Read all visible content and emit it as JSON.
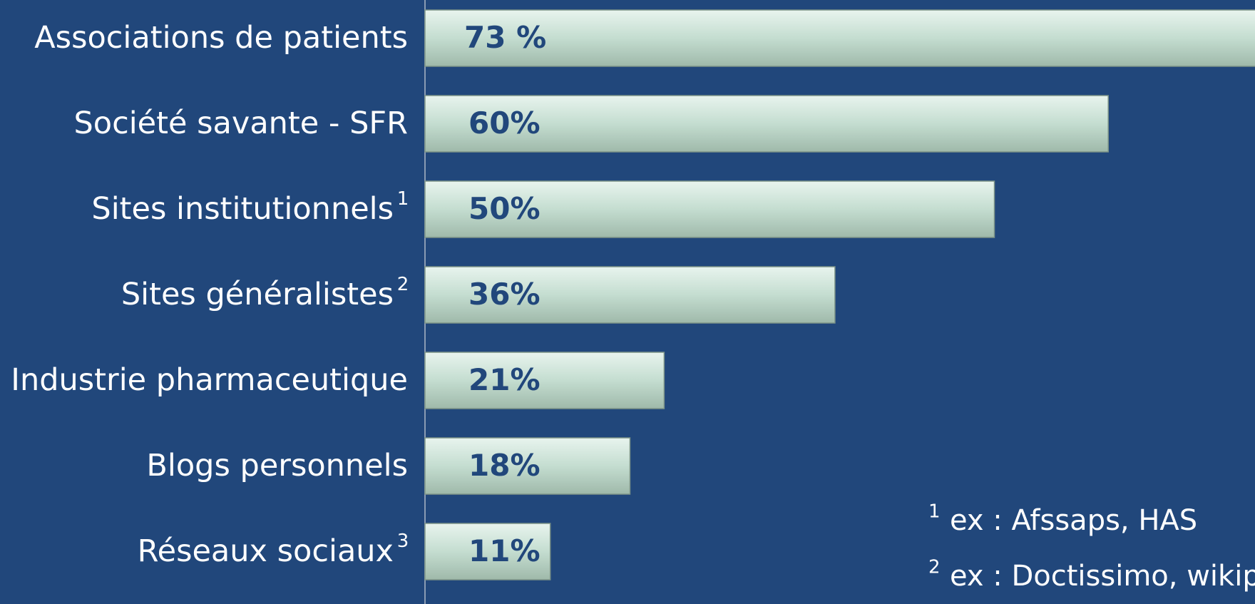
{
  "chart_data": {
    "type": "bar",
    "orientation": "horizontal",
    "categories": [
      "Associations de patients",
      "Société  savante - SFR",
      "Sites institutionnels",
      "Sites généralistes",
      "Industrie pharmaceutique",
      "Blogs personnels",
      "Réseaux sociaux"
    ],
    "category_notes": [
      null,
      null,
      "1",
      "2",
      null,
      null,
      "3"
    ],
    "values": [
      73,
      60,
      50,
      36,
      21,
      18,
      11
    ],
    "value_labels": [
      "73 %",
      "60%",
      "50%",
      "36%",
      "21%",
      "18%",
      "11%"
    ],
    "color": "#c4ddd0",
    "footnotes": [
      {
        "marker": "1",
        "text": "ex : Afssaps, HAS"
      },
      {
        "marker": "2",
        "text": "ex : Doctissimo, wikipedia"
      }
    ]
  }
}
